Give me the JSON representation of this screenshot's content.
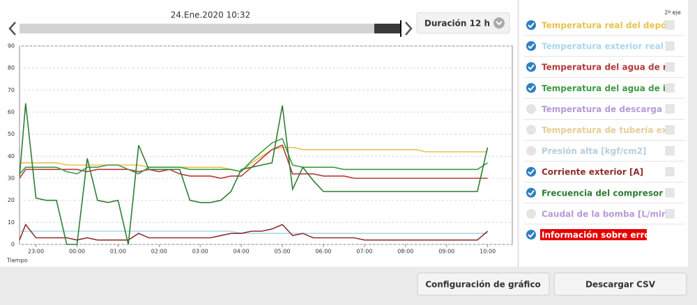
{
  "header": {
    "date": "24.Ene.2020 10:32",
    "duration": "Duración 12 h"
  },
  "chart_data": {
    "type": "line",
    "x_label": "Tiempo",
    "secondary_axis_header": "2º eje",
    "x": [
      22.6,
      22.75,
      23.0,
      23.25,
      23.5,
      23.75,
      24.0,
      24.25,
      24.5,
      24.75,
      25.0,
      25.25,
      25.5,
      25.75,
      26.0,
      26.25,
      26.5,
      26.75,
      27.0,
      27.25,
      27.5,
      27.75,
      28.0,
      28.25,
      28.5,
      28.75,
      29.0,
      29.25,
      29.5,
      29.75,
      30.0,
      30.25,
      30.5,
      30.75,
      31.0,
      31.25,
      31.5,
      31.75,
      32.0,
      32.25,
      32.5,
      32.75,
      33.0,
      33.25,
      33.5,
      33.75,
      34.0
    ],
    "xlim": [
      22.6,
      34.6
    ],
    "xticks": [
      {
        "value": 23,
        "label": "23:00"
      },
      {
        "value": 24,
        "label": "00:00"
      },
      {
        "value": 25,
        "label": "01:00"
      },
      {
        "value": 26,
        "label": "02:00"
      },
      {
        "value": 27,
        "label": "03:00"
      },
      {
        "value": 28,
        "label": "04:00"
      },
      {
        "value": 29,
        "label": "05:00"
      },
      {
        "value": 30,
        "label": "06:00"
      },
      {
        "value": 31,
        "label": "07:00"
      },
      {
        "value": 32,
        "label": "08:00"
      },
      {
        "value": 33,
        "label": "09:00"
      },
      {
        "value": 34,
        "label": "10:00"
      }
    ],
    "ylim": [
      0,
      90
    ],
    "yticks": [
      0,
      10,
      20,
      30,
      40,
      50,
      60,
      70,
      80,
      90
    ],
    "grid": true,
    "series": [
      {
        "name": "Temperatura real del depós",
        "color": "#e8c24e",
        "checked": true,
        "values": [
          37,
          37,
          37,
          37,
          37,
          36,
          36,
          36,
          36,
          36,
          36,
          36,
          36,
          35,
          35,
          35,
          35,
          35,
          35,
          35,
          35,
          34,
          33,
          37,
          40,
          43,
          44,
          44,
          43,
          43,
          43,
          43,
          43,
          43,
          43,
          43,
          43,
          43,
          43,
          43,
          42,
          42,
          42,
          42,
          42,
          42,
          42
        ]
      },
      {
        "name": "Temperatura exterior real [",
        "color": "#a9d8ec",
        "checked": true,
        "values": [
          6,
          6,
          6,
          6,
          6,
          6,
          6,
          6,
          6,
          6,
          6,
          6,
          6,
          6,
          6,
          6,
          6,
          6,
          6,
          6,
          6,
          6,
          5,
          5,
          5,
          5,
          5,
          5,
          5,
          5,
          5,
          5,
          5,
          5,
          5,
          5,
          5,
          5,
          5,
          5,
          5,
          5,
          5,
          5,
          5,
          5,
          5
        ]
      },
      {
        "name": "Temperatura del agua de re",
        "color": "#b23b3b",
        "checked": true,
        "values": [
          30,
          34,
          34,
          34,
          34,
          34,
          34,
          33,
          34,
          34,
          34,
          34,
          33,
          34,
          33,
          34,
          32,
          31,
          31,
          31,
          30,
          31,
          31,
          35,
          39,
          43,
          45,
          32,
          32,
          32,
          31,
          31,
          31,
          30,
          30,
          30,
          30,
          30,
          30,
          30,
          30,
          30,
          30,
          30,
          30,
          30,
          30
        ]
      },
      {
        "name": "Temperatura del agua de i",
        "color": "#3f9a45",
        "checked": true,
        "values": [
          32,
          35,
          35,
          35,
          35,
          33,
          32,
          35,
          35,
          36,
          36,
          34,
          32,
          35,
          35,
          35,
          35,
          34,
          34,
          34,
          34,
          34,
          33,
          38,
          42,
          46,
          48,
          36,
          35,
          35,
          35,
          35,
          34,
          34,
          34,
          34,
          34,
          34,
          34,
          34,
          34,
          34,
          34,
          34,
          34,
          34,
          37
        ]
      },
      {
        "name": "Temperatura de descarga [°",
        "color": "#b79ad8",
        "checked": false
      },
      {
        "name": "Temperatura de tubería ext",
        "color": "#e3cf98",
        "checked": false
      },
      {
        "name": "Presión alta [kgf/cm2]",
        "color": "#b5cfe0",
        "checked": false
      },
      {
        "name": "Corriente exterior [A]",
        "color": "#8e2f2f",
        "checked": true,
        "values": [
          2,
          9,
          3,
          3,
          3,
          3,
          2,
          3,
          2,
          2,
          2,
          2,
          5,
          3,
          3,
          3,
          3,
          3,
          3,
          3,
          4,
          5,
          5,
          6,
          6,
          7,
          9,
          4,
          5,
          3,
          3,
          3,
          3,
          3,
          2,
          2,
          2,
          2,
          2,
          2,
          2,
          2,
          2,
          2,
          2,
          2,
          6
        ]
      },
      {
        "name": "Frecuencia del compresor [",
        "color": "#2f7d34",
        "checked": true,
        "values": [
          31,
          64,
          21,
          20,
          20,
          0,
          0,
          39,
          20,
          19,
          20,
          0,
          45,
          34,
          34,
          34,
          34,
          20,
          19,
          19,
          20,
          24,
          34,
          35,
          36,
          37,
          63,
          25,
          35,
          29,
          24,
          24,
          24,
          24,
          24,
          24,
          24,
          24,
          24,
          24,
          24,
          24,
          24,
          24,
          24,
          24,
          44
        ]
      },
      {
        "name": "Caudal de la bomba [L/min]",
        "color": "#b79ad8",
        "checked": false
      },
      {
        "name": "Información sobre errores",
        "color": "#e60000",
        "checked": true
      }
    ]
  },
  "buttons": [
    "Configuración de gráfico",
    "Descargar CSV"
  ]
}
